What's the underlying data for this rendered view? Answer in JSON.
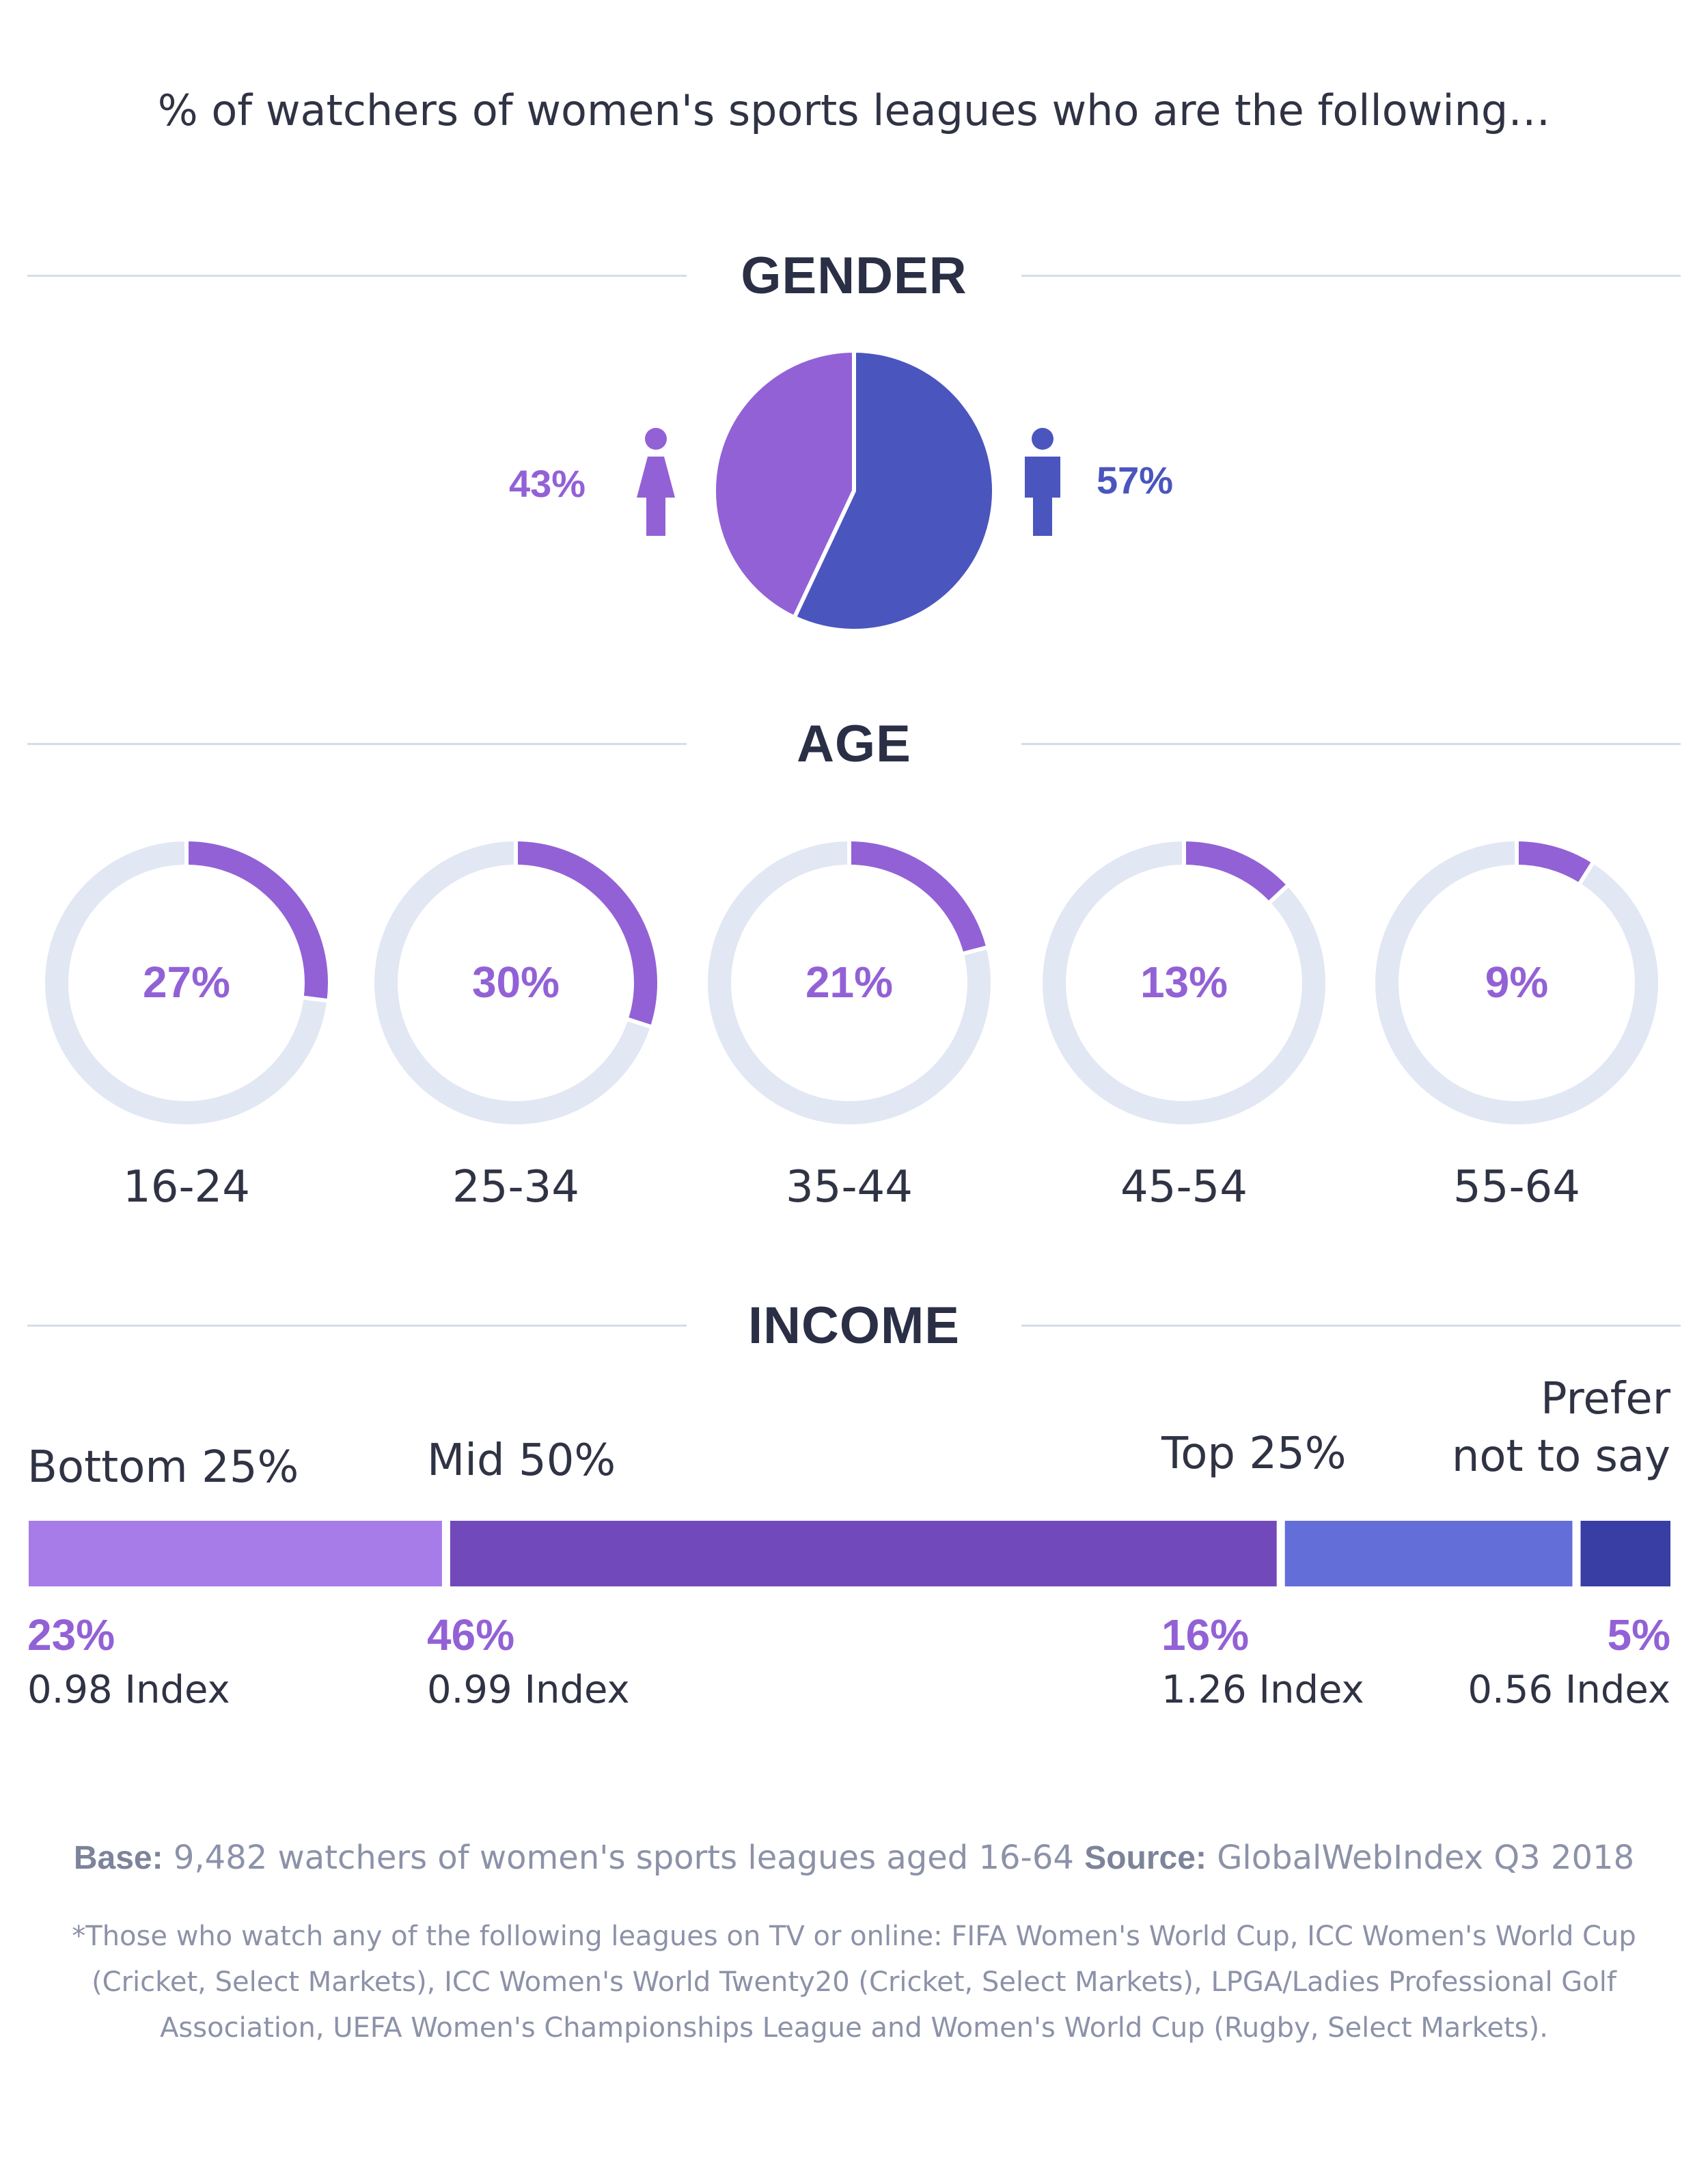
{
  "title": "% of watchers of women's sports leagues who are the following…",
  "sections": {
    "gender": "GENDER",
    "age": "AGE",
    "income": "INCOME"
  },
  "colors": {
    "female": "#9361d6",
    "male": "#4a55be",
    "track": "#e1e7f3",
    "line": "#d6dce8"
  },
  "icons": {
    "female": "female-person-icon",
    "male": "male-person-icon"
  },
  "chart_data": [
    {
      "type": "pie",
      "categories": [
        "Female",
        "Male"
      ],
      "values": [
        43,
        57
      ],
      "labels": [
        "43%",
        "57%"
      ]
    },
    {
      "type": "pie",
      "categories": [
        "16-24",
        "25-34",
        "35-44",
        "45-54",
        "55-64"
      ],
      "values": [
        27,
        30,
        21,
        13,
        9
      ],
      "labels": [
        "27%",
        "30%",
        "21%",
        "13%",
        "9%"
      ]
    },
    {
      "type": "bar",
      "orientation": "horizontal-stacked",
      "categories": [
        "Bottom 25%",
        "Mid 50%",
        "Top 25%",
        "Prefer not to say"
      ],
      "category_lines": [
        [
          "Bottom 25%"
        ],
        [
          "Mid 50%"
        ],
        [
          "Top 25%"
        ],
        [
          "Prefer",
          "not to say"
        ]
      ],
      "values": [
        23,
        46,
        16,
        5
      ],
      "labels": [
        "23%",
        "46%",
        "16%",
        "5%"
      ],
      "index": [
        "0.98 Index",
        "0.99 Index",
        "1.26 Index",
        "0.56 Index"
      ],
      "colors": [
        "#a77be8",
        "#7249bb",
        "#646ed8",
        "#383ea4"
      ]
    }
  ],
  "footer": {
    "base_label": "Base:",
    "base_text": "9,482 watchers of women's sports leagues aged 16-64",
    "source_label": "Source:",
    "source_text": "GlobalWebIndex Q3 2018",
    "footnote": "*Those who watch any of the following leagues on TV or online: FIFA Women's World Cup, ICC Women's World Cup (Cricket, Select Markets), ICC Women's World Twenty20 (Cricket, Select Markets), LPGA/Ladies Professional Golf Association, UEFA Women's Championships League and Women's World Cup (Rugby, Select Markets)."
  }
}
